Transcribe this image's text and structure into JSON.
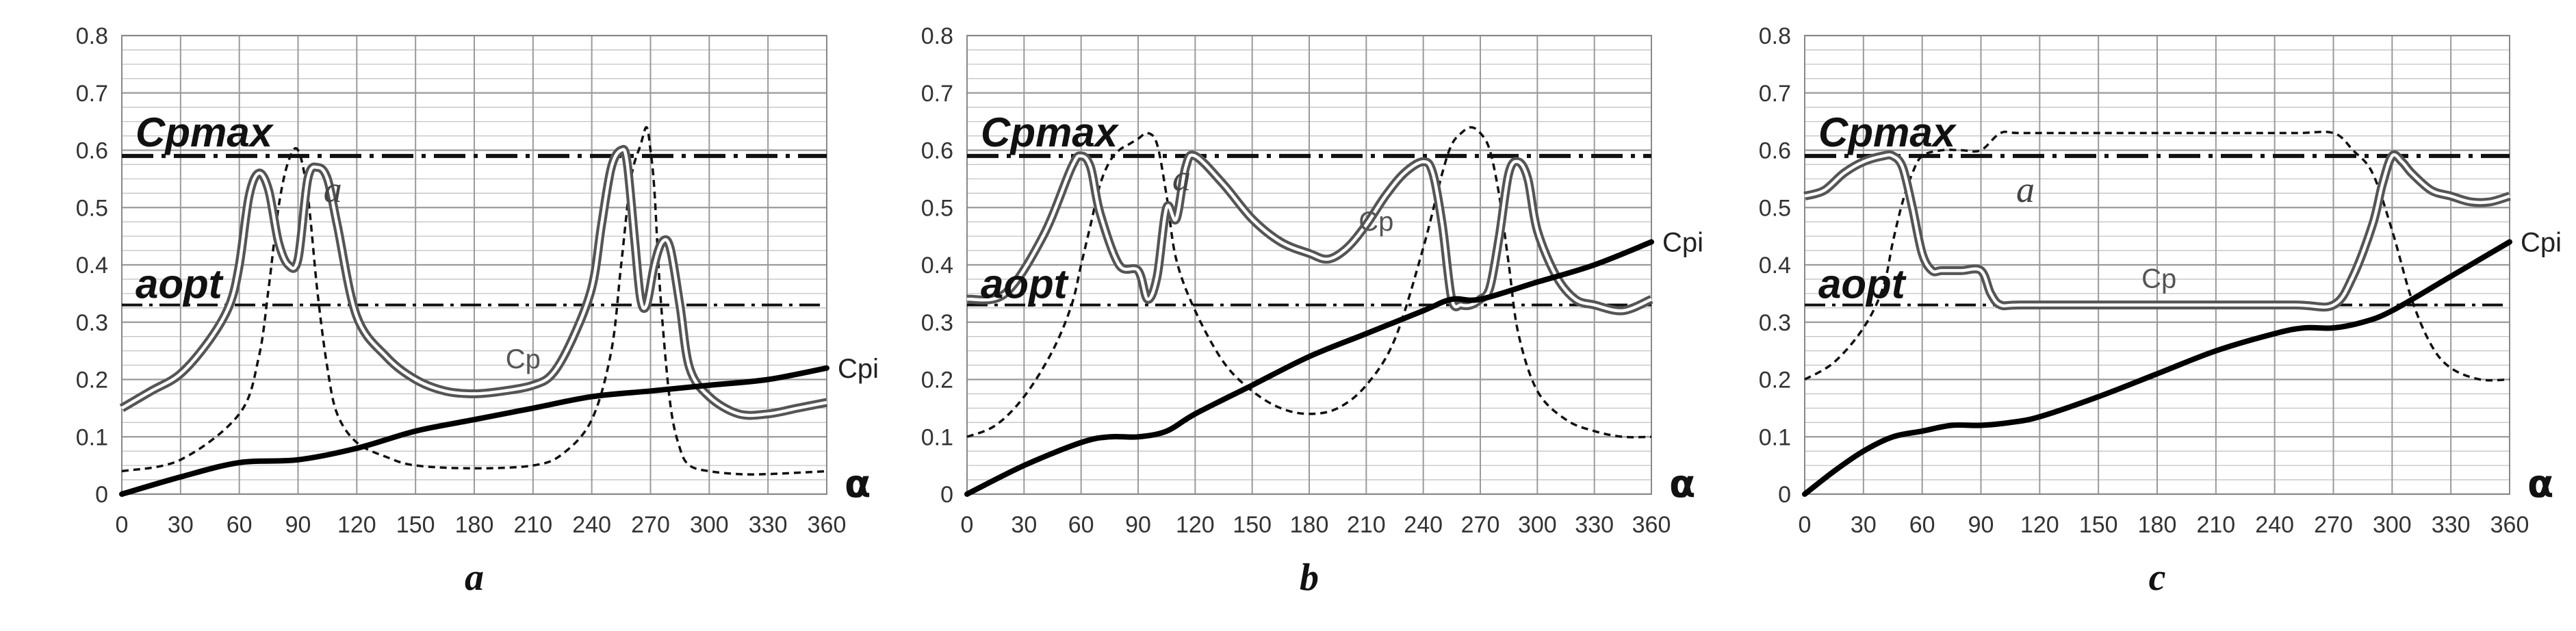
{
  "chart_data": [
    {
      "type": "line",
      "sub_label": "a",
      "x_ticks": [
        "0",
        "30",
        "60",
        "90",
        "120",
        "150",
        "180",
        "210",
        "240",
        "270",
        "300",
        "330",
        "360"
      ],
      "y_ticks": [
        "0",
        "0.1",
        "0.2",
        "0.3",
        "0.4",
        "0.5",
        "0.6",
        "0.7",
        "0.8"
      ],
      "xlim": [
        0,
        360
      ],
      "ylim": [
        0,
        0.8
      ],
      "grid": true,
      "labels": {
        "cpmax": "Cpmax",
        "aopt": "aopt",
        "a": "a",
        "cp": "Cp",
        "cpi": "Cpi",
        "alpha": "α"
      },
      "cpmax_level": 0.59,
      "aopt_level": 0.33,
      "series": [
        {
          "key": "cp",
          "x": [
            0,
            15,
            30,
            45,
            55,
            60,
            65,
            70,
            75,
            80,
            85,
            90,
            95,
            100,
            105,
            110,
            120,
            135,
            150,
            165,
            180,
            195,
            210,
            220,
            230,
            240,
            245,
            250,
            255,
            258,
            262,
            265,
            268,
            272,
            276,
            280,
            285,
            290,
            300,
            315,
            330,
            345,
            360
          ],
          "y": [
            0.15,
            0.18,
            0.21,
            0.27,
            0.33,
            0.4,
            0.52,
            0.56,
            0.53,
            0.44,
            0.4,
            0.41,
            0.55,
            0.57,
            0.55,
            0.47,
            0.31,
            0.24,
            0.2,
            0.18,
            0.175,
            0.18,
            0.19,
            0.21,
            0.27,
            0.36,
            0.47,
            0.57,
            0.6,
            0.58,
            0.44,
            0.34,
            0.33,
            0.4,
            0.44,
            0.43,
            0.33,
            0.22,
            0.17,
            0.14,
            0.14,
            0.15,
            0.16
          ]
        },
        {
          "key": "a",
          "x": [
            0,
            30,
            60,
            70,
            75,
            80,
            85,
            90,
            95,
            100,
            105,
            110,
            120,
            135,
            150,
            180,
            210,
            225,
            240,
            250,
            255,
            260,
            265,
            268,
            270,
            272,
            275,
            280,
            285,
            290,
            300,
            315,
            330,
            360
          ],
          "y": [
            0.04,
            0.06,
            0.14,
            0.24,
            0.36,
            0.5,
            0.58,
            0.6,
            0.52,
            0.35,
            0.22,
            0.14,
            0.09,
            0.065,
            0.05,
            0.045,
            0.05,
            0.07,
            0.13,
            0.25,
            0.4,
            0.55,
            0.61,
            0.64,
            0.6,
            0.53,
            0.35,
            0.16,
            0.08,
            0.05,
            0.04,
            0.035,
            0.035,
            0.04
          ]
        },
        {
          "key": "cpi",
          "x": [
            0,
            30,
            60,
            90,
            120,
            150,
            180,
            210,
            240,
            270,
            300,
            330,
            360
          ],
          "y": [
            0,
            0.03,
            0.055,
            0.06,
            0.08,
            0.11,
            0.13,
            0.15,
            0.17,
            0.18,
            0.19,
            0.2,
            0.22
          ]
        }
      ]
    },
    {
      "type": "line",
      "sub_label": "b",
      "x_ticks": [
        "0",
        "30",
        "60",
        "90",
        "120",
        "150",
        "180",
        "210",
        "240",
        "270",
        "300",
        "330",
        "360"
      ],
      "y_ticks": [
        "0",
        "0.1",
        "0.2",
        "0.3",
        "0.4",
        "0.5",
        "0.6",
        "0.7",
        "0.8"
      ],
      "xlim": [
        0,
        360
      ],
      "ylim": [
        0,
        0.8
      ],
      "grid": true,
      "labels": {
        "cpmax": "Cpmax",
        "aopt": "aopt",
        "a": "a",
        "cp": "Cp",
        "cpi": "Cpi",
        "alpha": "α"
      },
      "cpmax_level": 0.59,
      "aopt_level": 0.33,
      "series": [
        {
          "key": "cp",
          "x": [
            0,
            20,
            40,
            55,
            60,
            65,
            70,
            80,
            90,
            95,
            100,
            105,
            110,
            115,
            120,
            135,
            150,
            165,
            180,
            190,
            200,
            210,
            220,
            230,
            240,
            245,
            250,
            255,
            260,
            265,
            270,
            275,
            280,
            285,
            290,
            295,
            300,
            310,
            320,
            330,
            345,
            360
          ],
          "y": [
            0.34,
            0.35,
            0.45,
            0.57,
            0.59,
            0.57,
            0.49,
            0.4,
            0.39,
            0.34,
            0.38,
            0.5,
            0.48,
            0.57,
            0.59,
            0.54,
            0.48,
            0.44,
            0.42,
            0.41,
            0.43,
            0.47,
            0.52,
            0.56,
            0.58,
            0.56,
            0.47,
            0.34,
            0.33,
            0.33,
            0.34,
            0.36,
            0.45,
            0.56,
            0.58,
            0.55,
            0.46,
            0.38,
            0.34,
            0.33,
            0.32,
            0.34
          ]
        },
        {
          "key": "a",
          "x": [
            0,
            15,
            30,
            45,
            55,
            60,
            65,
            70,
            75,
            80,
            85,
            90,
            95,
            100,
            105,
            110,
            120,
            135,
            150,
            165,
            180,
            195,
            210,
            225,
            240,
            250,
            255,
            260,
            265,
            270,
            275,
            280,
            285,
            290,
            300,
            315,
            330,
            345,
            360
          ],
          "y": [
            0.1,
            0.12,
            0.17,
            0.25,
            0.33,
            0.4,
            0.47,
            0.54,
            0.58,
            0.6,
            0.61,
            0.62,
            0.63,
            0.61,
            0.52,
            0.41,
            0.32,
            0.23,
            0.18,
            0.15,
            0.14,
            0.15,
            0.19,
            0.27,
            0.43,
            0.56,
            0.61,
            0.63,
            0.64,
            0.63,
            0.6,
            0.52,
            0.4,
            0.28,
            0.18,
            0.13,
            0.11,
            0.1,
            0.1
          ]
        },
        {
          "key": "cpi",
          "x": [
            0,
            30,
            60,
            75,
            90,
            105,
            120,
            150,
            180,
            210,
            240,
            255,
            270,
            300,
            330,
            360
          ],
          "y": [
            0,
            0.05,
            0.09,
            0.1,
            0.1,
            0.11,
            0.14,
            0.19,
            0.24,
            0.28,
            0.32,
            0.34,
            0.34,
            0.37,
            0.4,
            0.44
          ]
        }
      ]
    },
    {
      "type": "line",
      "sub_label": "c",
      "x_ticks": [
        "0",
        "30",
        "60",
        "90",
        "120",
        "150",
        "180",
        "210",
        "240",
        "270",
        "300",
        "330",
        "360"
      ],
      "y_ticks": [
        "0",
        "0.1",
        "0.2",
        "0.3",
        "0.4",
        "0.5",
        "0.6",
        "0.7",
        "0.8"
      ],
      "xlim": [
        0,
        360
      ],
      "ylim": [
        0,
        0.8
      ],
      "grid": true,
      "labels": {
        "cpmax": "Cpmax",
        "aopt": "aopt",
        "a": "a",
        "cp": "Cp",
        "cpi": "Cpi",
        "alpha": "α"
      },
      "cpmax_level": 0.59,
      "aopt_level": 0.33,
      "series": [
        {
          "key": "cp",
          "x": [
            0,
            10,
            20,
            30,
            40,
            45,
            50,
            55,
            60,
            65,
            70,
            80,
            90,
            95,
            100,
            110,
            150,
            200,
            250,
            270,
            280,
            290,
            295,
            300,
            305,
            310,
            320,
            330,
            340,
            350,
            360
          ],
          "y": [
            0.52,
            0.53,
            0.56,
            0.58,
            0.59,
            0.59,
            0.57,
            0.5,
            0.42,
            0.39,
            0.39,
            0.39,
            0.39,
            0.35,
            0.33,
            0.33,
            0.33,
            0.33,
            0.33,
            0.33,
            0.38,
            0.47,
            0.54,
            0.59,
            0.58,
            0.56,
            0.53,
            0.52,
            0.51,
            0.51,
            0.52
          ]
        },
        {
          "key": "a",
          "x": [
            0,
            15,
            30,
            40,
            45,
            50,
            55,
            60,
            70,
            80,
            90,
            100,
            110,
            150,
            200,
            250,
            270,
            280,
            290,
            300,
            310,
            320,
            330,
            345,
            360
          ],
          "y": [
            0.2,
            0.23,
            0.29,
            0.36,
            0.44,
            0.51,
            0.56,
            0.59,
            0.6,
            0.6,
            0.6,
            0.63,
            0.63,
            0.63,
            0.63,
            0.63,
            0.63,
            0.6,
            0.56,
            0.46,
            0.34,
            0.26,
            0.22,
            0.2,
            0.2
          ]
        },
        {
          "key": "cpi",
          "x": [
            0,
            15,
            30,
            45,
            60,
            75,
            90,
            105,
            120,
            150,
            180,
            210,
            240,
            255,
            270,
            285,
            300,
            330,
            360
          ],
          "y": [
            0,
            0.04,
            0.075,
            0.1,
            0.11,
            0.12,
            0.12,
            0.125,
            0.135,
            0.17,
            0.21,
            0.25,
            0.28,
            0.29,
            0.29,
            0.3,
            0.32,
            0.38,
            0.44
          ]
        }
      ]
    }
  ]
}
